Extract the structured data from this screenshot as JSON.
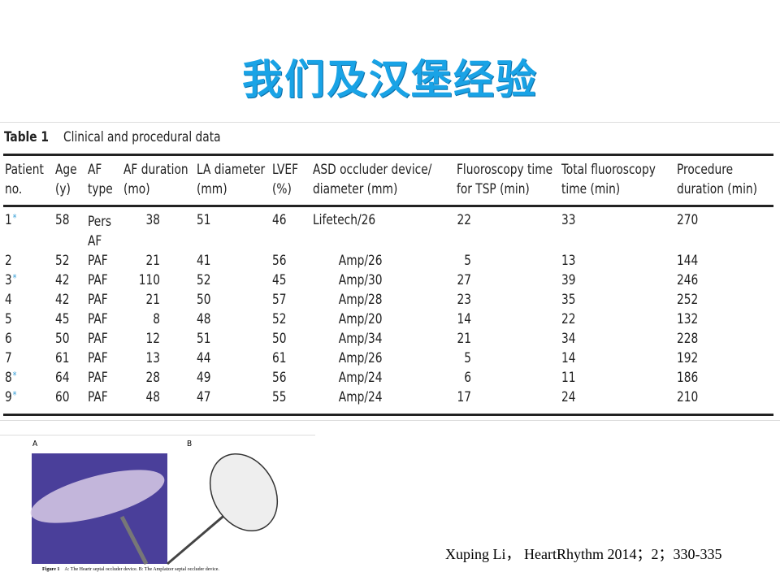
{
  "title": "我们及汉堡经验",
  "table": {
    "label": "Table 1",
    "caption": "Clinical and procedural data",
    "headers": [
      [
        "Patient",
        "no."
      ],
      [
        "Age",
        "(y)"
      ],
      [
        "AF",
        "type"
      ],
      [
        "AF duration",
        "(mo)"
      ],
      [
        "LA diameter",
        "(mm)"
      ],
      [
        "LVEF",
        "(%)"
      ],
      [
        "ASD occluder device/",
        "diameter (mm)"
      ],
      [
        "Fluoroscopy time",
        "for TSP (min)"
      ],
      [
        "Total fluoroscopy",
        "time (min)"
      ],
      [
        "Procedure",
        "duration (min)"
      ]
    ],
    "rows": [
      {
        "no": "1",
        "star": "*",
        "cells": [
          "58",
          "Pers AF",
          "38",
          "51",
          "46",
          "Lifetech/26",
          "22",
          "33",
          "270"
        ]
      },
      {
        "no": "2",
        "star": "",
        "cells": [
          "52",
          "PAF",
          "21",
          "41",
          "56",
          "Amp/26",
          "5",
          "13",
          "144"
        ]
      },
      {
        "no": "3",
        "star": "*",
        "cells": [
          "42",
          "PAF",
          "110",
          "52",
          "45",
          "Amp/30",
          "27",
          "39",
          "246"
        ]
      },
      {
        "no": "4",
        "star": "",
        "cells": [
          "42",
          "PAF",
          "21",
          "50",
          "57",
          "Amp/28",
          "23",
          "35",
          "252"
        ]
      },
      {
        "no": "5",
        "star": "",
        "cells": [
          "45",
          "PAF",
          "8",
          "48",
          "52",
          "Amp/20",
          "14",
          "22",
          "132"
        ]
      },
      {
        "no": "6",
        "star": "",
        "cells": [
          "50",
          "PAF",
          "12",
          "51",
          "50",
          "Amp/34",
          "21",
          "34",
          "228"
        ]
      },
      {
        "no": "7",
        "star": "",
        "cells": [
          "61",
          "PAF",
          "13",
          "44",
          "61",
          "Amp/26",
          "5",
          "14",
          "192"
        ]
      },
      {
        "no": "8",
        "star": "*",
        "cells": [
          "64",
          "PAF",
          "28",
          "49",
          "56",
          "Amp/24",
          "6",
          "11",
          "186"
        ]
      },
      {
        "no": "9",
        "star": "*",
        "cells": [
          "60",
          "PAF",
          "48",
          "47",
          "55",
          "Amp/24",
          "17",
          "24",
          "210"
        ]
      }
    ]
  },
  "figure": {
    "label_a": "A",
    "label_b": "B",
    "caption_label": "Figure 1",
    "caption": "A: The Heartr septal occluder device. B: The Amplatzer septal occluder device."
  },
  "citation": "Xuping Li，  HeartRhythm 2014；2；330-335"
}
